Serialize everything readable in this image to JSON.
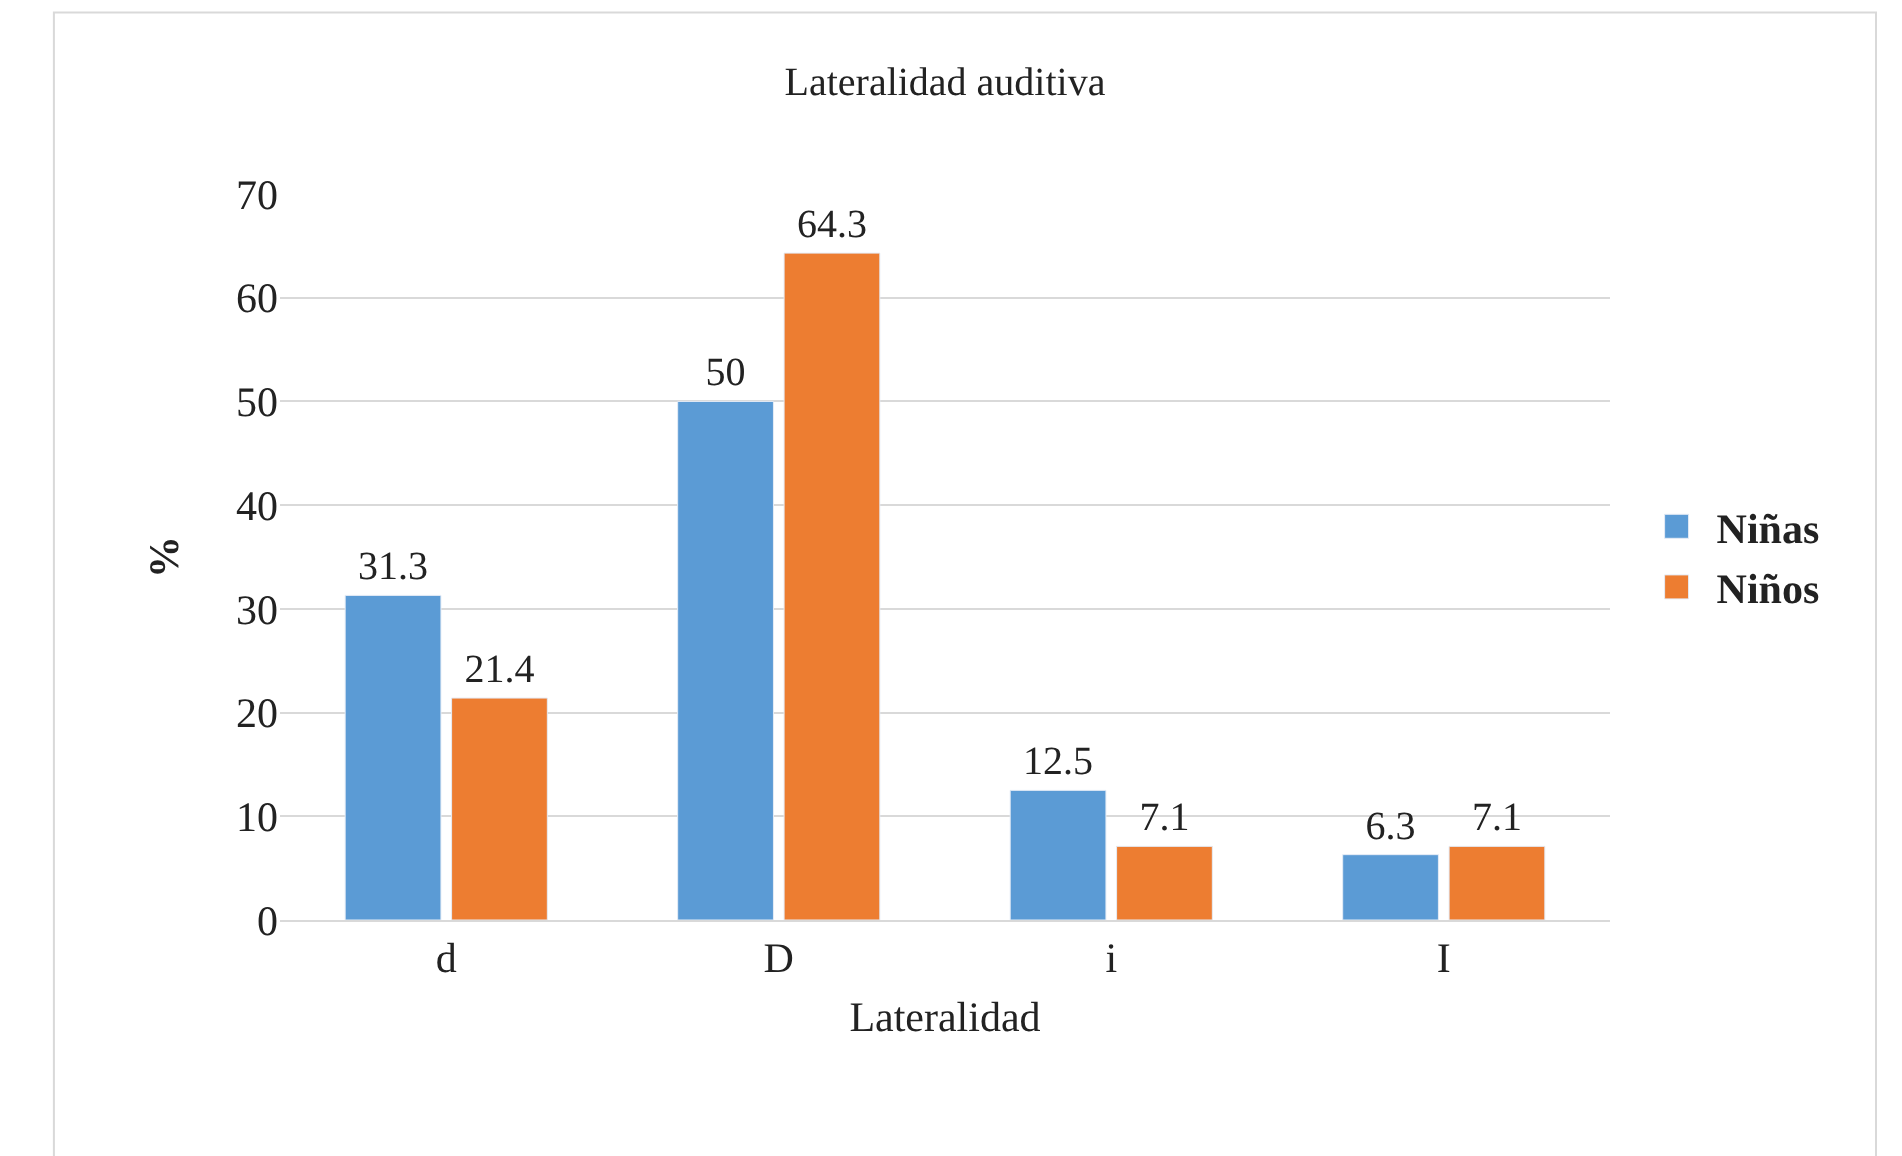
{
  "chart_data": {
    "type": "bar",
    "title": "Lateralidad auditiva",
    "xlabel": "Lateralidad",
    "ylabel": "%",
    "categories": [
      "d",
      "D",
      "i",
      "I"
    ],
    "series": [
      {
        "name": "Niñas",
        "color": "#5b9bd5",
        "values": [
          31.3,
          50,
          12.5,
          6.3
        ]
      },
      {
        "name": "Niños",
        "color": "#ed7d31",
        "values": [
          21.4,
          64.3,
          7.1,
          7.1
        ]
      }
    ],
    "ylim": [
      0,
      70
    ],
    "yticks": [
      0,
      10,
      20,
      30,
      40,
      50,
      60,
      70
    ],
    "grid": "y",
    "legend": "right",
    "data_labels": true
  }
}
